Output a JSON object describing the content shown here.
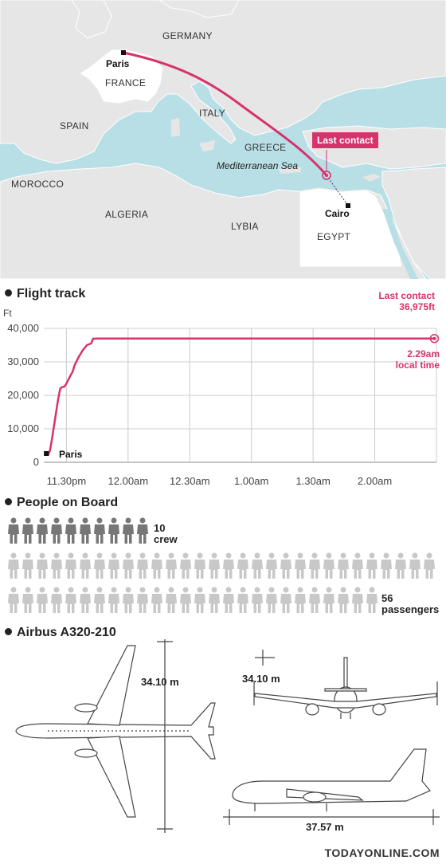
{
  "map": {
    "countries": [
      "GERMANY",
      "FRANCE",
      "ITALY",
      "SPAIN",
      "GREECE",
      "MOROCCO",
      "ALGERIA",
      "LYBIA",
      "EGYPT"
    ],
    "sea": "Mediterranean Sea",
    "origin": "Paris",
    "destination": "Cairo",
    "last_contact_label": "Last contact",
    "colors": {
      "sea": "#b8dfe6",
      "land": "#e5e5e5",
      "highlight_land": "#ffffff",
      "route": "#d6336c"
    }
  },
  "flight_track": {
    "title": "Flight track",
    "y_unit": "Ft",
    "origin_label": "Paris",
    "last_contact": "Last contact",
    "last_contact_alt": "36,975ft",
    "time_label": "2.29am",
    "time_label_2": "local time"
  },
  "chart_data": {
    "type": "line",
    "title": "Flight track",
    "ylabel": "Ft",
    "xlabel": "",
    "x_ticks": [
      "11.30pm",
      "12.00am",
      "12.30am",
      "1.00am",
      "1.30am",
      "2.00am"
    ],
    "y_ticks": [
      "0",
      "10,000",
      "20,000",
      "30,000",
      "40,000"
    ],
    "ylim": [
      0,
      40000
    ],
    "x_unit": "minutes after 11.00pm",
    "xlim": [
      19,
      210
    ],
    "grid": true,
    "series": [
      {
        "x": [
          21,
          22,
          23,
          24,
          25,
          26,
          27,
          28,
          29,
          30,
          32,
          33,
          34,
          36,
          38,
          40,
          42,
          43,
          45,
          209
        ],
        "y": [
          2000,
          3500,
          7000,
          11000,
          15000,
          19000,
          22000,
          22500,
          22600,
          23500,
          26000,
          27000,
          29000,
          31500,
          33500,
          35000,
          35500,
          36900,
          36975,
          36975
        ]
      }
    ],
    "annotations": [
      "Paris",
      "Last contact 36,975ft",
      "2.29am local time"
    ],
    "color": "#d6336c"
  },
  "people": {
    "title": "People on Board",
    "crew_count": "10",
    "crew_label": "crew",
    "passenger_count": "56",
    "passenger_label": "passengers",
    "crew_color": "#777777",
    "passenger_color": "#c8c8c8"
  },
  "aircraft": {
    "title": "Airbus A320-210",
    "wingspan_top": "34.10 m",
    "wingspan_front": "34.10 m",
    "length": "37.57 m"
  },
  "footer": "TODAYONLINE.COM"
}
